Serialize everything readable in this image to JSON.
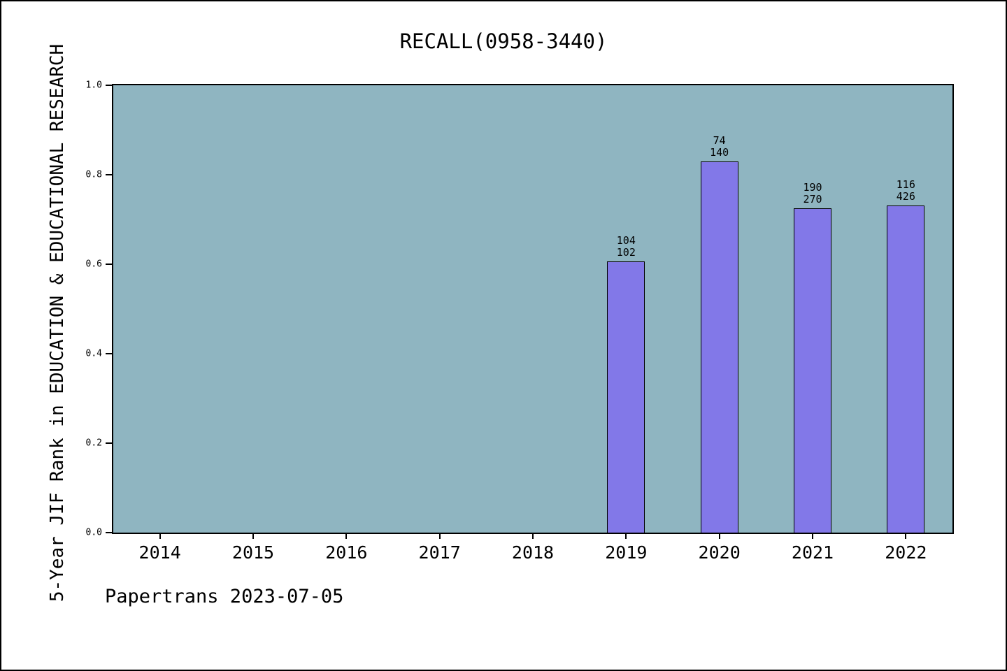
{
  "title": "RECALL(0958-3440)",
  "footer": "Papertrans 2023-07-05",
  "colors": {
    "plot_bg": "#8fb5c1",
    "bar_fill": "#8278e8",
    "bar_edge": "#000000",
    "axis": "#000000"
  },
  "chart_data": {
    "type": "bar",
    "title": "RECALL(0958-3440)",
    "ylabel": "5-Year JIF Rank in EDUCATION & EDUCATIONAL RESEARCH",
    "xlabel": "",
    "categories": [
      "2014",
      "2015",
      "2016",
      "2017",
      "2018",
      "2019",
      "2020",
      "2021",
      "2022"
    ],
    "values": [
      null,
      null,
      null,
      null,
      null,
      0.606,
      0.83,
      0.725,
      0.731
    ],
    "bar_labels": [
      null,
      null,
      null,
      null,
      null,
      [
        "104",
        "102"
      ],
      [
        "74",
        "140"
      ],
      [
        "190",
        "270"
      ],
      [
        "116",
        "426"
      ]
    ],
    "yticks": [
      {
        "value": 0.0,
        "label": "0.0"
      },
      {
        "value": 0.2,
        "label": "0.2"
      },
      {
        "value": 0.4,
        "label": "0.4"
      },
      {
        "value": 0.6,
        "label": "0.6"
      },
      {
        "value": 0.8,
        "label": "0.8"
      },
      {
        "value": 1.0,
        "label": "1.0"
      }
    ],
    "ylim": [
      0,
      1
    ],
    "grid": false
  }
}
